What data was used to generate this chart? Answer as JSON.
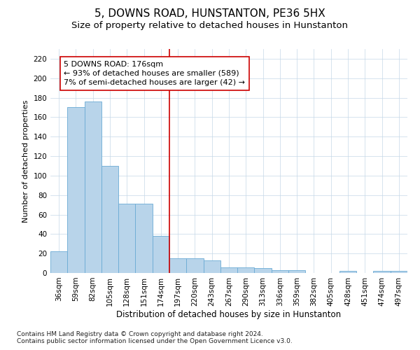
{
  "title": "5, DOWNS ROAD, HUNSTANTON, PE36 5HX",
  "subtitle": "Size of property relative to detached houses in Hunstanton",
  "xlabel": "Distribution of detached houses by size in Hunstanton",
  "ylabel": "Number of detached properties",
  "footnote1": "Contains HM Land Registry data © Crown copyright and database right 2024.",
  "footnote2": "Contains public sector information licensed under the Open Government Licence v3.0.",
  "categories": [
    "36sqm",
    "59sqm",
    "82sqm",
    "105sqm",
    "128sqm",
    "151sqm",
    "174sqm",
    "197sqm",
    "220sqm",
    "243sqm",
    "267sqm",
    "290sqm",
    "313sqm",
    "336sqm",
    "359sqm",
    "382sqm",
    "405sqm",
    "428sqm",
    "451sqm",
    "474sqm",
    "497sqm"
  ],
  "values": [
    22,
    170,
    176,
    110,
    71,
    71,
    38,
    15,
    15,
    13,
    6,
    6,
    5,
    3,
    3,
    0,
    0,
    2,
    0,
    2,
    2
  ],
  "bar_color": "#b8d4ea",
  "bar_edge_color": "#6aaad4",
  "vline_color": "#cc0000",
  "annotation_line1": "5 DOWNS ROAD: 176sqm",
  "annotation_line2": "← 93% of detached houses are smaller (589)",
  "annotation_line3": "7% of semi-detached houses are larger (42) →",
  "annotation_box_color": "#ffffff",
  "annotation_box_edge": "#cc0000",
  "ylim": [
    0,
    230
  ],
  "yticks": [
    0,
    20,
    40,
    60,
    80,
    100,
    120,
    140,
    160,
    180,
    200,
    220
  ],
  "title_fontsize": 11,
  "subtitle_fontsize": 9.5,
  "xlabel_fontsize": 8.5,
  "ylabel_fontsize": 8,
  "tick_fontsize": 7.5,
  "annotation_fontsize": 8,
  "footnote_fontsize": 6.5
}
